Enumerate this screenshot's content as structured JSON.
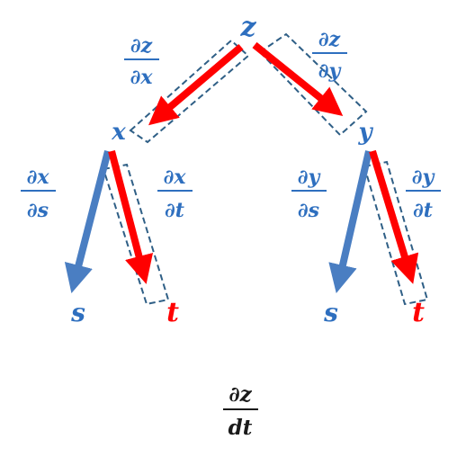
{
  "colors": {
    "blue": "#4a7ec2",
    "label_blue": "#2e6fbf",
    "red": "#ff0000",
    "box": "#2f5f86",
    "black": "#1a1a1a"
  },
  "nodes": {
    "z": "z",
    "x": "x",
    "y": "y",
    "x_s": "s",
    "x_t": "t",
    "y_s": "s",
    "y_t": "t"
  },
  "edges": {
    "z_x": {
      "num": "∂z",
      "den": "∂x",
      "highlighted": true
    },
    "z_y": {
      "num": "∂z",
      "den": "∂y",
      "highlighted": true
    },
    "x_s": {
      "num": "∂x",
      "den": "∂s",
      "highlighted": false
    },
    "x_t": {
      "num": "∂x",
      "den": "∂t",
      "highlighted": true
    },
    "y_s": {
      "num": "∂y",
      "den": "∂s",
      "highlighted": false
    },
    "y_t": {
      "num": "∂y",
      "den": "∂t",
      "highlighted": true
    }
  },
  "result": {
    "num": "∂z",
    "den": "dt"
  }
}
